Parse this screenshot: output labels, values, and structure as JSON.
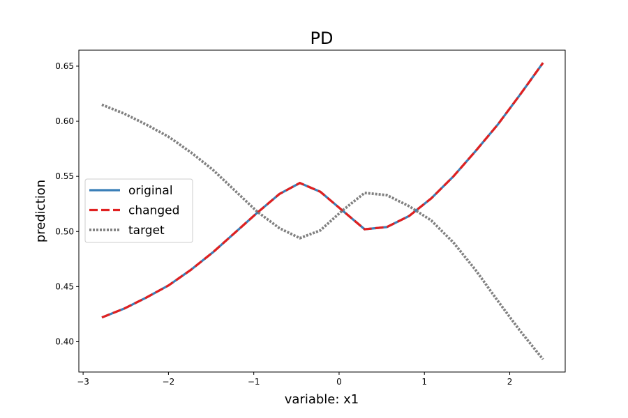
{
  "chart_data": {
    "type": "line",
    "title": "PD",
    "xlabel": "variable: x1",
    "ylabel": "prediction",
    "xlim": [
      -3.05,
      2.65
    ],
    "ylim": [
      0.3725,
      0.6645
    ],
    "xticks": [
      -3,
      -2,
      -1,
      0,
      1,
      2
    ],
    "xtick_labels": [
      "−3",
      "−2",
      "−1",
      "0",
      "1",
      "2"
    ],
    "yticks": [
      0.4,
      0.45,
      0.5,
      0.55,
      0.6,
      0.65
    ],
    "ytick_labels": [
      "0.40",
      "0.45",
      "0.50",
      "0.55",
      "0.60",
      "0.65"
    ],
    "grid": false,
    "legend_position": "center-left",
    "x": [
      -2.78,
      -2.52,
      -2.26,
      -2.0,
      -1.74,
      -1.48,
      -1.22,
      -0.96,
      -0.7,
      -0.46,
      -0.22,
      0.04,
      0.3,
      0.56,
      0.82,
      1.08,
      1.34,
      1.6,
      1.86,
      2.12,
      2.39
    ],
    "series": [
      {
        "name": "original",
        "color": "#3a7fb8",
        "style": "solid",
        "values": [
          0.422,
          0.43,
          0.44,
          0.451,
          0.465,
          0.481,
          0.499,
          0.517,
          0.534,
          0.544,
          0.536,
          0.519,
          0.502,
          0.504,
          0.514,
          0.53,
          0.55,
          0.573,
          0.597,
          0.624,
          0.653
        ]
      },
      {
        "name": "changed",
        "color": "#e02020",
        "style": "dashed",
        "values": [
          0.422,
          0.43,
          0.44,
          0.451,
          0.465,
          0.481,
          0.499,
          0.517,
          0.534,
          0.544,
          0.536,
          0.519,
          0.502,
          0.504,
          0.514,
          0.53,
          0.55,
          0.573,
          0.597,
          0.624,
          0.653
        ]
      },
      {
        "name": "target",
        "color": "#808080",
        "style": "dotted",
        "values": [
          0.615,
          0.607,
          0.597,
          0.586,
          0.572,
          0.556,
          0.537,
          0.518,
          0.503,
          0.494,
          0.501,
          0.519,
          0.535,
          0.533,
          0.523,
          0.51,
          0.49,
          0.465,
          0.437,
          0.41,
          0.384
        ]
      }
    ]
  }
}
